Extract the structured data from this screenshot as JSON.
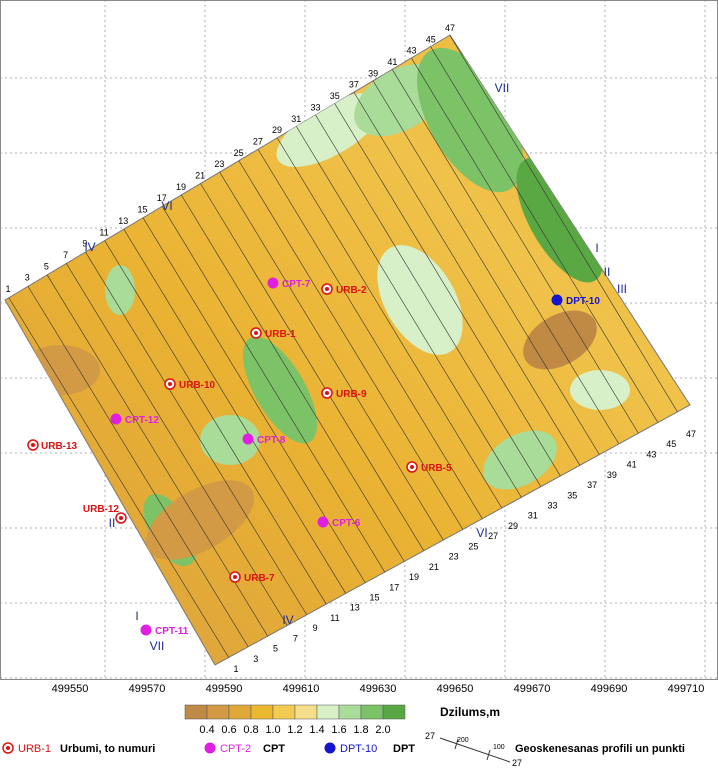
{
  "map": {
    "x_axis_labels": [
      "499550",
      "499570",
      "499590",
      "499610",
      "499630",
      "499650",
      "499670",
      "499690",
      "499710"
    ],
    "profile_numbers": [
      "1",
      "3",
      "5",
      "7",
      "9",
      "11",
      "13",
      "15",
      "17",
      "19",
      "21",
      "23",
      "25",
      "27",
      "29",
      "31",
      "33",
      "35",
      "37",
      "39",
      "41",
      "43",
      "45",
      "47"
    ],
    "roman_labels": [
      "VII",
      "I",
      "II",
      "III",
      "VI",
      "IV",
      "II",
      "I",
      "VII",
      "VI",
      "IV"
    ],
    "points": [
      {
        "label": "CPT-7",
        "kind": "cpt"
      },
      {
        "label": "URB-2",
        "kind": "urb"
      },
      {
        "label": "DPT-10",
        "kind": "dpt"
      },
      {
        "label": "URB-1",
        "kind": "urb"
      },
      {
        "label": "URB-10",
        "kind": "urb"
      },
      {
        "label": "URB-9",
        "kind": "urb"
      },
      {
        "label": "CPT-12",
        "kind": "cpt"
      },
      {
        "label": "CPT-8",
        "kind": "cpt"
      },
      {
        "label": "URB-13",
        "kind": "urb"
      },
      {
        "label": "URB-5",
        "kind": "urb"
      },
      {
        "label": "URB-12",
        "kind": "urb"
      },
      {
        "label": "CPT-6",
        "kind": "cpt"
      },
      {
        "label": "URB-7",
        "kind": "urb"
      },
      {
        "label": "CPT-11",
        "kind": "cpt"
      }
    ],
    "colorbar": {
      "title": "Dzilums,m",
      "ticks": [
        "0.4",
        "0.6",
        "0.8",
        "1.0",
        "1.2",
        "1.4",
        "1.6",
        "1.8",
        "2.0"
      ],
      "colors": [
        "#c08a45",
        "#d29a45",
        "#e0a838",
        "#ecb830",
        "#f2cc52",
        "#f4e08a",
        "#d8f0c8",
        "#a8dc98",
        "#7cc266",
        "#5aa843"
      ]
    },
    "legend": {
      "urb": {
        "symbol_label": "URB-1",
        "text": "Urbumi, to numuri"
      },
      "cpt": {
        "symbol_label": "CPT-2",
        "text": "CPT"
      },
      "dpt": {
        "symbol_label": "DPT-10",
        "text": "DPT"
      },
      "profile": {
        "numbers": [
          "27",
          "200",
          "100",
          "27"
        ],
        "text": "Geoskenesanas profili un punkti"
      }
    }
  }
}
